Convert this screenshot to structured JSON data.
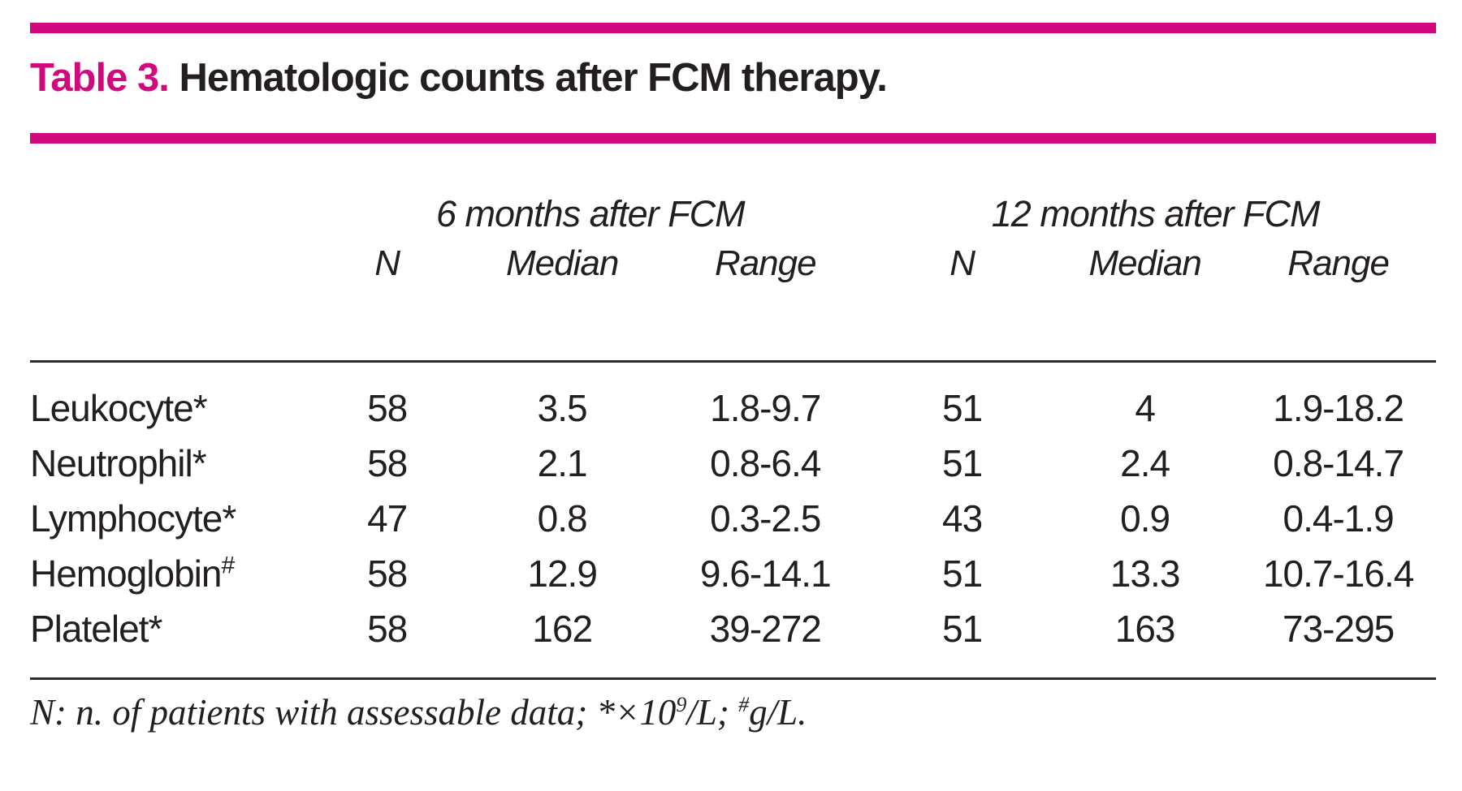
{
  "accent_color": "#d00a7c",
  "title": {
    "prefix": "Table 3.",
    "text": " Hematologic counts after FCM therapy."
  },
  "table": {
    "group_headers": [
      "6 months after FCM",
      "12 months after FCM"
    ],
    "column_headers": [
      "N",
      "Median",
      "Range",
      "N",
      "Median",
      "Range"
    ],
    "rows": [
      {
        "label": "Leukocyte",
        "marker": "*",
        "values": [
          "58",
          "3.5",
          "1.8-9.7",
          "51",
          "4",
          "1.9-18.2"
        ]
      },
      {
        "label": "Neutrophil",
        "marker": "*",
        "values": [
          "58",
          "2.1",
          "0.8-6.4",
          "51",
          "2.4",
          "0.8-14.7"
        ]
      },
      {
        "label": "Lymphocyte",
        "marker": "*",
        "values": [
          "47",
          "0.8",
          "0.3-2.5",
          "43",
          "0.9",
          "0.4-1.9"
        ]
      },
      {
        "label": "Hemoglobin",
        "marker": "#",
        "values": [
          "58",
          "12.9",
          "9.6-14.1",
          "51",
          "13.3",
          "10.7-16.4"
        ]
      },
      {
        "label": "Platelet",
        "marker": "*",
        "values": [
          "58",
          "162",
          "39-272",
          "51",
          "163",
          "73-295"
        ]
      }
    ]
  },
  "footnote": {
    "lead": "N: n. of patients with assessable data; *×10",
    "sup1": "9",
    "mid": "/L; ",
    "sup2": "#",
    "tail": "g/L."
  },
  "chart_data": {
    "type": "table",
    "title": "Table 3. Hematologic counts after FCM therapy.",
    "column_groups": [
      "6 months after FCM",
      "12 months after FCM"
    ],
    "columns": [
      "",
      "N",
      "Median",
      "Range",
      "N",
      "Median",
      "Range"
    ],
    "rows": [
      [
        "Leukocyte*",
        "58",
        "3.5",
        "1.8-9.7",
        "51",
        "4",
        "1.9-18.2"
      ],
      [
        "Neutrophil*",
        "58",
        "2.1",
        "0.8-6.4",
        "51",
        "2.4",
        "0.8-14.7"
      ],
      [
        "Lymphocyte*",
        "47",
        "0.8",
        "0.3-2.5",
        "43",
        "0.9",
        "0.4-1.9"
      ],
      [
        "Hemoglobin#",
        "58",
        "12.9",
        "9.6-14.1",
        "51",
        "13.3",
        "10.7-16.4"
      ],
      [
        "Platelet*",
        "58",
        "162",
        "39-272",
        "51",
        "163",
        "73-295"
      ]
    ],
    "footnote": "N: n. of patients with assessable data; *×10⁹/L; #g/L."
  }
}
